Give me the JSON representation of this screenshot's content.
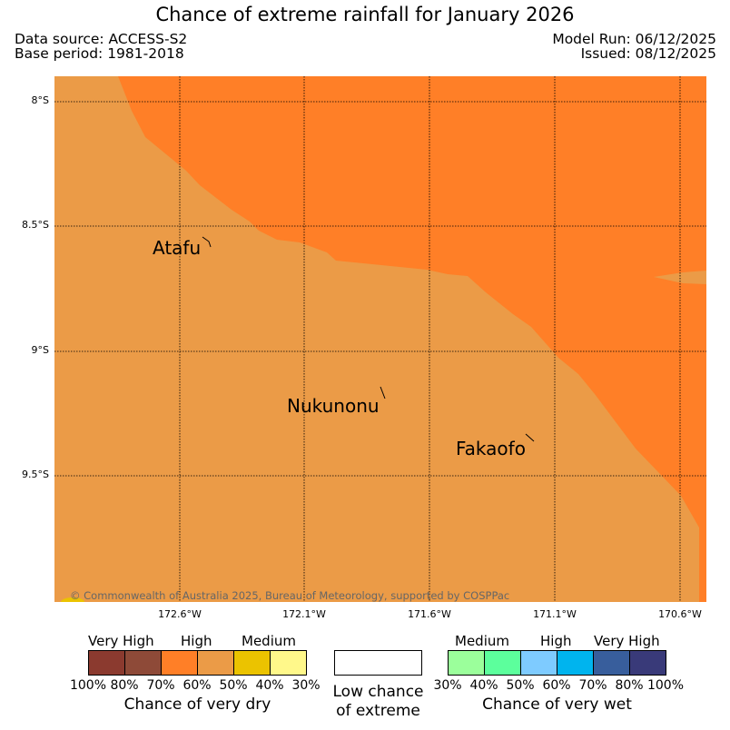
{
  "header": {
    "title": "Chance of extreme rainfall for January 2026",
    "data_source": "Data source: ACCESS-S2",
    "base_period": "Base period: 1981-2018",
    "model_run": "Model Run: 06/12/2025",
    "issued": "Issued: 08/12/2025"
  },
  "map": {
    "lat_ticks": [
      "8°S",
      "8.5°S",
      "9°S",
      "9.5°S"
    ],
    "lon_ticks": [
      "172.6°W",
      "172.1°W",
      "171.6°W",
      "171.1°W",
      "170.6°W"
    ],
    "places": [
      "Atafu",
      "Nukunonu",
      "Fakaofo"
    ],
    "copyright": "© Commonwealth of Australia 2025, Bureau of Meteorology, supported by COSPPac",
    "colors": {
      "dry_high": "#ff7f27",
      "dry_medium": "#eb9b47",
      "outline": "#000000"
    }
  },
  "legend": {
    "dry": {
      "category_labels": [
        "Very High",
        "High",
        "Medium"
      ],
      "swatches": [
        "#8b3a2f",
        "#8e4a38",
        "#ff7f27",
        "#eb9b47",
        "#ebc300",
        "#fff88a"
      ],
      "ticks": [
        "100%",
        "80%",
        "70%",
        "60%",
        "50%",
        "40%",
        "30%"
      ],
      "title": "Chance of very dry"
    },
    "low": {
      "swatch": "#ffffff",
      "title_line1": "Low chance",
      "title_line2": "of extreme"
    },
    "wet": {
      "category_labels": [
        "Medium",
        "High",
        "Very High"
      ],
      "swatches": [
        "#9bff9b",
        "#5cff9c",
        "#7ecbff",
        "#00b4ee",
        "#385e9c",
        "#393a79"
      ],
      "ticks": [
        "30%",
        "40%",
        "50%",
        "60%",
        "70%",
        "80%",
        "100%"
      ],
      "title": "Chance of very wet"
    }
  }
}
